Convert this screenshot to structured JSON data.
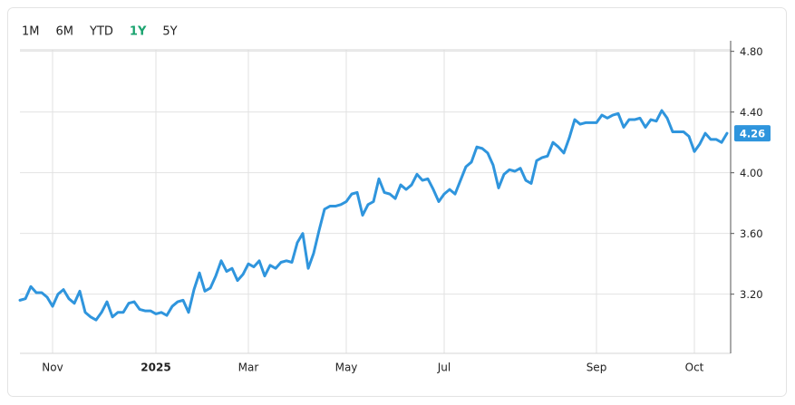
{
  "ranges": [
    "1M",
    "6M",
    "YTD",
    "1Y",
    "5Y"
  ],
  "selected_range": "1Y",
  "chart_data": {
    "type": "line",
    "color": "#2f95dd",
    "grid": true,
    "categories": [
      null,
      null,
      null,
      null,
      null,
      null,
      "Nov",
      null,
      null,
      null,
      null,
      null,
      null,
      null,
      null,
      null,
      null,
      null,
      null,
      null,
      null,
      null,
      null,
      null,
      null,
      "2025",
      null,
      null,
      null,
      null,
      null,
      null,
      null,
      null,
      null,
      null,
      null,
      null,
      null,
      null,
      null,
      null,
      "Mar",
      null,
      null,
      null,
      null,
      null,
      null,
      null,
      null,
      null,
      null,
      null,
      null,
      null,
      null,
      null,
      null,
      null,
      "May",
      null,
      null,
      null,
      null,
      null,
      null,
      null,
      null,
      null,
      null,
      null,
      null,
      null,
      null,
      null,
      null,
      null,
      "Jul",
      null,
      null,
      null,
      null,
      null,
      null,
      null,
      null,
      null,
      null,
      null,
      null,
      null,
      null,
      null,
      null,
      null,
      null,
      null,
      null,
      null,
      null,
      null,
      null,
      null,
      null,
      null,
      "Sep",
      null,
      null,
      null,
      null,
      null,
      null,
      null,
      null,
      null,
      null,
      null,
      null,
      null,
      null,
      null,
      null,
      null,
      "Oct",
      null,
      null,
      null,
      null,
      null,
      null
    ],
    "values": [
      3.16,
      3.17,
      3.25,
      3.21,
      3.21,
      3.18,
      3.12,
      3.2,
      3.23,
      3.17,
      3.14,
      3.22,
      3.08,
      3.05,
      3.03,
      3.08,
      3.15,
      3.05,
      3.08,
      3.08,
      3.14,
      3.15,
      3.1,
      3.09,
      3.09,
      3.07,
      3.08,
      3.06,
      3.12,
      3.15,
      3.16,
      3.08,
      3.23,
      3.34,
      3.22,
      3.24,
      3.32,
      3.42,
      3.35,
      3.37,
      3.29,
      3.33,
      3.4,
      3.38,
      3.42,
      3.32,
      3.39,
      3.37,
      3.41,
      3.42,
      3.41,
      3.54,
      3.6,
      3.37,
      3.47,
      3.62,
      3.76,
      3.78,
      3.78,
      3.79,
      3.81,
      3.86,
      3.87,
      3.72,
      3.79,
      3.81,
      3.96,
      3.87,
      3.86,
      3.83,
      3.92,
      3.89,
      3.92,
      3.99,
      3.95,
      3.96,
      3.89,
      3.81,
      3.86,
      3.89,
      3.86,
      3.95,
      4.04,
      4.07,
      4.17,
      4.16,
      4.13,
      4.05,
      3.9,
      3.99,
      4.02,
      4.01,
      4.03,
      3.95,
      3.93,
      4.08,
      4.1,
      4.11,
      4.2,
      4.17,
      4.13,
      4.23,
      4.35,
      4.32,
      4.33,
      4.33,
      4.33,
      4.38,
      4.36,
      4.38,
      4.39,
      4.3,
      4.35,
      4.35,
      4.36,
      4.3,
      4.35,
      4.34,
      4.41,
      4.36,
      4.27,
      4.27,
      4.27,
      4.24,
      4.14,
      4.19,
      4.26,
      4.22,
      4.22,
      4.2,
      4.26
    ],
    "ylim": [
      2.81,
      4.81
    ],
    "yticks": [
      {
        "value": 3.2,
        "label": "3.20"
      },
      {
        "value": 3.6,
        "label": "3.60"
      },
      {
        "value": 4.0,
        "label": "4.00"
      },
      {
        "value": 4.4,
        "label": "4.40"
      },
      {
        "value": 4.8,
        "label": "4.80"
      }
    ],
    "last_value_label": "4.26"
  }
}
